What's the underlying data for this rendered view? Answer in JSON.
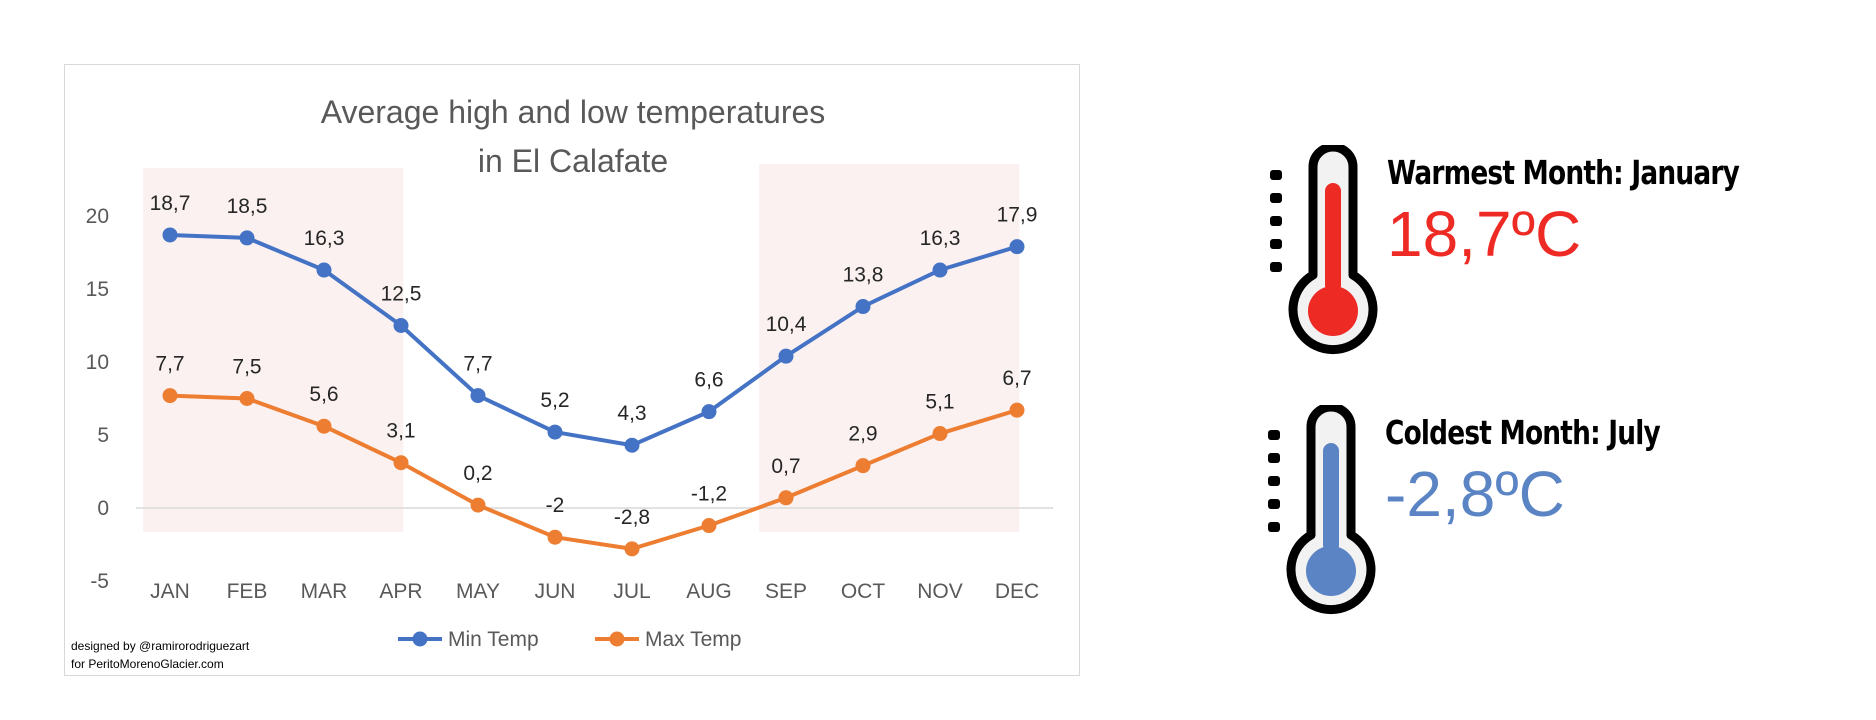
{
  "chart_data": {
    "type": "line",
    "title": "Average high and low temperatures in El Calafate",
    "title_lines": [
      "Average high and low temperatures",
      "in El Calafate"
    ],
    "categories": [
      "JAN",
      "FEB",
      "MAR",
      "APR",
      "MAY",
      "JUN",
      "JUL",
      "AUG",
      "SEP",
      "OCT",
      "NOV",
      "DEC"
    ],
    "series": [
      {
        "name": "Min Temp",
        "color": "#4472c4",
        "values": [
          18.7,
          18.5,
          16.3,
          12.5,
          7.7,
          5.2,
          4.3,
          6.6,
          10.4,
          13.8,
          16.3,
          17.9
        ],
        "labels": [
          "18,7",
          "18,5",
          "16,3",
          "12,5",
          "7,7",
          "5,2",
          "4,3",
          "6,6",
          "10,4",
          "13,8",
          "16,3",
          "17,9"
        ]
      },
      {
        "name": "Max Temp",
        "color": "#ed7d31",
        "values": [
          7.7,
          7.5,
          5.6,
          3.1,
          0.2,
          -2,
          -2.8,
          -1.2,
          0.7,
          2.9,
          5.1,
          6.7
        ],
        "labels": [
          "7,7",
          "7,5",
          "5,6",
          "3,1",
          "0,2",
          "-2",
          "-2,8",
          "-1,2",
          "0,7",
          "2,9",
          "5,1",
          "6,7"
        ]
      }
    ],
    "yticks": [
      20,
      15,
      10,
      5,
      0,
      -5
    ],
    "ylim": [
      -5,
      20
    ],
    "xlabel": "",
    "ylabel": "",
    "grid": false,
    "legend": "bottom",
    "shaded_months": [
      [
        "JAN",
        "APR"
      ],
      [
        "SEP",
        "DEC"
      ]
    ],
    "shade_color": "#fbf1f1"
  },
  "credit": {
    "line1": "designed by @ramirorodriguezart",
    "line2": "for PeritoMorenoGlacier.com"
  },
  "warmest": {
    "heading": "Warmest Month: January",
    "value": "18,7ºC",
    "color": "#ee2a24"
  },
  "coldest": {
    "heading": "Coldest Month: July",
    "value": "-2,8ºC",
    "color": "#5b84c4"
  }
}
